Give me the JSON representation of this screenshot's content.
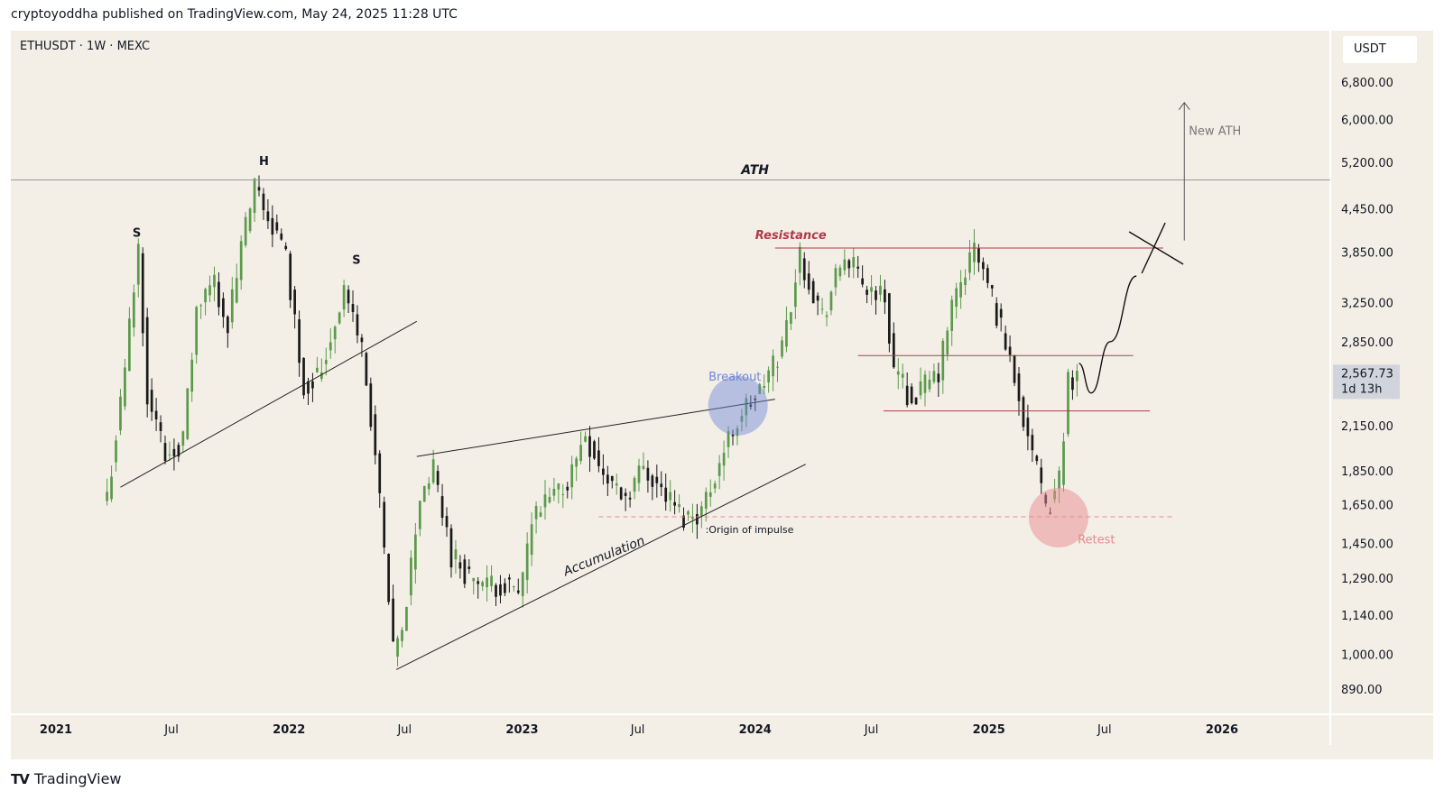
{
  "header": {
    "published": "cryptoyoddha published on TradingView.com, May 24, 2025 11:28 UTC"
  },
  "chart_title": "ETHUSDT · 1W · MEXC",
  "currency": "USDT",
  "footer": {
    "brand": "TradingView"
  },
  "chart_data": {
    "type": "candlestick",
    "symbol": "ETHUSDT",
    "interval": "1W",
    "exchange": "MEXC",
    "yscale": "log",
    "ylim": [
      820,
      7600
    ],
    "y_ticks": [
      6800,
      6000,
      5200,
      4450,
      3850,
      3250,
      2850,
      2150,
      1850,
      1650,
      1450,
      1290,
      1140,
      1000,
      890
    ],
    "y_tick_labels": [
      "6,800.00",
      "6,000.00",
      "5,200.00",
      "4,450.00",
      "3,850.00",
      "3,250.00",
      "2,850.00",
      "2,150.00",
      "1,850.00",
      "1,650.00",
      "1,450.00",
      "1,290.00",
      "1,140.00",
      "1,000.00",
      "890.00"
    ],
    "x_ticks": [
      {
        "date": "2021-01-01",
        "label": "2021",
        "bold": true
      },
      {
        "date": "2021-07-01",
        "label": "Jul",
        "bold": false
      },
      {
        "date": "2022-01-01",
        "label": "2022",
        "bold": true
      },
      {
        "date": "2022-07-01",
        "label": "Jul",
        "bold": false
      },
      {
        "date": "2023-01-01",
        "label": "2023",
        "bold": true
      },
      {
        "date": "2023-07-01",
        "label": "Jul",
        "bold": false
      },
      {
        "date": "2024-01-01",
        "label": "2024",
        "bold": true
      },
      {
        "date": "2024-07-01",
        "label": "Jul",
        "bold": false
      },
      {
        "date": "2025-01-01",
        "label": "2025",
        "bold": true
      },
      {
        "date": "2025-07-01",
        "label": "Jul",
        "bold": false
      },
      {
        "date": "2026-01-01",
        "label": "2026",
        "bold": true
      }
    ],
    "current_price": {
      "value": 2567.73,
      "label": "2,567.73",
      "countdown": "1d 13h"
    },
    "colors": {
      "up": "#5b9a4a",
      "down": "#1a1a1a",
      "resistance": "#b23a48",
      "breakout": "#6f86d6",
      "retest": "#e7898f"
    },
    "close_series": [
      {
        "date": "2021-03-22",
        "close": 1700
      },
      {
        "date": "2021-04-12",
        "close": 2300
      },
      {
        "date": "2021-05-10",
        "close": 3900
      },
      {
        "date": "2021-05-24",
        "close": 2400
      },
      {
        "date": "2021-06-21",
        "close": 1950
      },
      {
        "date": "2021-07-19",
        "close": 2050
      },
      {
        "date": "2021-08-09",
        "close": 3150
      },
      {
        "date": "2021-09-06",
        "close": 3500
      },
      {
        "date": "2021-09-27",
        "close": 3000
      },
      {
        "date": "2021-10-18",
        "close": 3900
      },
      {
        "date": "2021-11-08",
        "close": 4750
      },
      {
        "date": "2021-12-06",
        "close": 4200
      },
      {
        "date": "2021-12-27",
        "close": 3800
      },
      {
        "date": "2022-01-24",
        "close": 2450
      },
      {
        "date": "2022-02-21",
        "close": 2600
      },
      {
        "date": "2022-03-28",
        "close": 3400
      },
      {
        "date": "2022-04-25",
        "close": 2800
      },
      {
        "date": "2022-05-16",
        "close": 1950
      },
      {
        "date": "2022-06-13",
        "close": 1000
      },
      {
        "date": "2022-06-27",
        "close": 1070
      },
      {
        "date": "2022-07-25",
        "close": 1700
      },
      {
        "date": "2022-08-15",
        "close": 1850
      },
      {
        "date": "2022-09-12",
        "close": 1400
      },
      {
        "date": "2022-10-10",
        "close": 1300
      },
      {
        "date": "2022-11-07",
        "close": 1250
      },
      {
        "date": "2022-12-05",
        "close": 1270
      },
      {
        "date": "2022-12-26",
        "close": 1200
      },
      {
        "date": "2023-01-16",
        "close": 1550
      },
      {
        "date": "2023-02-13",
        "close": 1680
      },
      {
        "date": "2023-03-13",
        "close": 1780
      },
      {
        "date": "2023-04-10",
        "close": 2100
      },
      {
        "date": "2023-05-08",
        "close": 1820
      },
      {
        "date": "2023-06-12",
        "close": 1700
      },
      {
        "date": "2023-07-10",
        "close": 1880
      },
      {
        "date": "2023-08-14",
        "close": 1700
      },
      {
        "date": "2023-09-11",
        "close": 1580
      },
      {
        "date": "2023-10-09",
        "close": 1620
      },
      {
        "date": "2023-10-30",
        "close": 1830
      },
      {
        "date": "2023-11-20",
        "close": 2050
      },
      {
        "date": "2023-12-11",
        "close": 2250
      },
      {
        "date": "2024-01-08",
        "close": 2400
      },
      {
        "date": "2024-02-12",
        "close": 2800
      },
      {
        "date": "2024-03-11",
        "close": 3800
      },
      {
        "date": "2024-04-15",
        "close": 3100
      },
      {
        "date": "2024-05-20",
        "close": 3800
      },
      {
        "date": "2024-06-17",
        "close": 3450
      },
      {
        "date": "2024-07-22",
        "close": 3300
      },
      {
        "date": "2024-08-05",
        "close": 2600
      },
      {
        "date": "2024-09-02",
        "close": 2350
      },
      {
        "date": "2024-10-14",
        "close": 2550
      },
      {
        "date": "2024-11-04",
        "close": 3200
      },
      {
        "date": "2024-12-09",
        "close": 3900
      },
      {
        "date": "2025-01-06",
        "close": 3300
      },
      {
        "date": "2025-02-03",
        "close": 2700
      },
      {
        "date": "2025-03-03",
        "close": 2100
      },
      {
        "date": "2025-03-31",
        "close": 1600
      },
      {
        "date": "2025-04-21",
        "close": 1800
      },
      {
        "date": "2025-05-05",
        "close": 2500
      },
      {
        "date": "2025-05-19",
        "close": 2567.73
      }
    ],
    "horizontal_lines": [
      {
        "name": "ath-line",
        "price": 4900,
        "style": "solid-gray"
      },
      {
        "name": "resistance-line",
        "price": 3900,
        "from": "2024-02-01",
        "to": "2025-10-01",
        "style": "solid-red"
      },
      {
        "name": "upper-range-line",
        "price": 2720,
        "from": "2024-06-10",
        "to": "2025-08-15",
        "style": "solid-red"
      },
      {
        "name": "lower-range-line",
        "price": 2260,
        "from": "2024-07-20",
        "to": "2025-09-10",
        "style": "solid-red"
      },
      {
        "name": "impulse-origin-line",
        "price": 1585,
        "from": "2023-05-01",
        "to": "2025-10-15",
        "style": "dashed-pink"
      }
    ],
    "trend_lines": [
      {
        "name": "hs-neckline",
        "from": {
          "date": "2021-04-12",
          "price": 1750
        },
        "to": {
          "date": "2022-07-20",
          "price": 3050
        }
      },
      {
        "name": "channel-upper-line",
        "from": {
          "date": "2022-07-20",
          "price": 1940
        },
        "to": {
          "date": "2024-02-01",
          "price": 2350
        }
      },
      {
        "name": "accumulation-line",
        "from": {
          "date": "2022-06-18",
          "price": 950
        },
        "to": {
          "date": "2024-03-20",
          "price": 1890
        }
      }
    ],
    "annotations": [
      {
        "name": "hs-left-shoulder-label",
        "text": "S",
        "date": "2021-05-01",
        "price": 4050
      },
      {
        "name": "hs-head-label",
        "text": "H",
        "date": "2021-11-15",
        "price": 5150
      },
      {
        "name": "hs-right-shoulder-label",
        "text": "S",
        "date": "2022-04-10",
        "price": 3700
      },
      {
        "name": "ath-label",
        "text": "ATH",
        "date": "2023-12-10",
        "price": 5000
      },
      {
        "name": "resistance-label",
        "text": "Resistance",
        "date": "2024-01-01",
        "price": 4020
      },
      {
        "name": "breakout-label",
        "text": "Breakout",
        "date": "2023-10-20",
        "price": 2500
      },
      {
        "name": "origin-of-impulse-label",
        "text": ":Origin of impulse",
        "date": "2023-10-15",
        "price": 1500
      },
      {
        "name": "accumulation-label",
        "text": "Accumulation",
        "date": "2023-03-10",
        "price": 1300
      },
      {
        "name": "retest-label",
        "text": "Retest",
        "date": "2025-05-20",
        "price": 1450
      },
      {
        "name": "new-ath-label",
        "text": "New ATH",
        "date": "2025-11-10",
        "price": 5700
      }
    ],
    "breakout_circle": {
      "date": "2023-12-05",
      "price": 2300
    },
    "retest_circle": {
      "date": "2025-04-20",
      "price": 1580
    },
    "projection_path": [
      {
        "date": "2025-05-22",
        "price": 2650
      },
      {
        "date": "2025-06-10",
        "price": 2400
      },
      {
        "date": "2025-07-10",
        "price": 2850
      },
      {
        "date": "2025-08-20",
        "price": 3550
      }
    ],
    "target_arrow": {
      "date": "2025-11-03",
      "from": 4000,
      "to": 6350
    }
  }
}
